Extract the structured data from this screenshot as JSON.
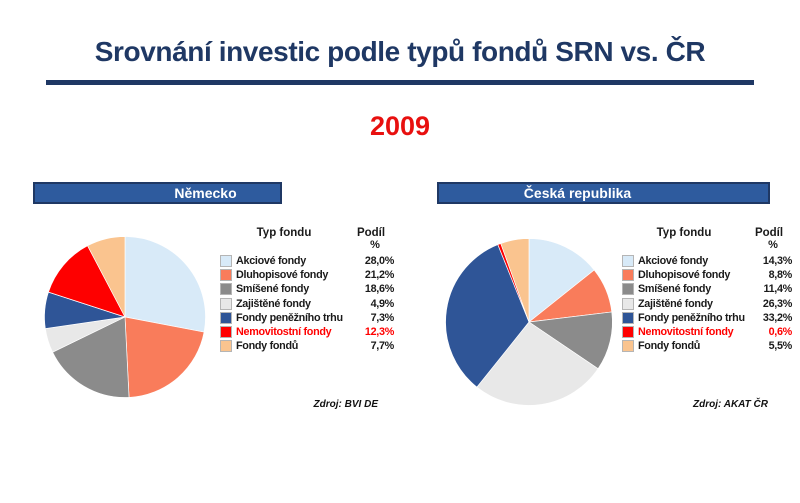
{
  "slide": {
    "title": "Srovnání investic podle typů fondů SRN vs. ČR",
    "year": "2009"
  },
  "panels": [
    {
      "header": "Německo",
      "source": "Zdroj: BVI DE"
    },
    {
      "header": "Česká republika",
      "source": "Zdroj: AKAT ČR"
    }
  ],
  "legend_headers": {
    "type": "Typ fondu",
    "share": "Podíl",
    "unit": "%"
  },
  "chart_data": [
    {
      "type": "pie",
      "title": "Německo",
      "legend_position": "right",
      "start_angle_deg": -90,
      "direction": "clockwise",
      "categories": [
        "Akciové fondy",
        "Dluhopisové fondy",
        "Smíšené fondy",
        "Zajištěné fondy",
        "Fondy peněžního trhu",
        "Nemovitostní fondy",
        "Fondy fondů"
      ],
      "values": [
        28.0,
        21.2,
        18.6,
        4.9,
        7.3,
        12.3,
        7.7
      ],
      "value_labels": [
        "28,0%",
        "21,2%",
        "18,6%",
        "4,9%",
        "7,3%",
        "12,3%",
        "7,7%"
      ],
      "colors": [
        "#D8EAF8",
        "#F97C5B",
        "#8B8B8B",
        "#E8E8E8",
        "#2F5597",
        "#FE0000",
        "#FAC48F"
      ],
      "highlight_index": 5
    },
    {
      "type": "pie",
      "title": "Česká republika",
      "legend_position": "right",
      "start_angle_deg": -90,
      "direction": "clockwise",
      "categories": [
        "Akciové fondy",
        "Dluhopisové fondy",
        "Smíšené fondy",
        "Zajištěné fondy",
        "Fondy peněžního trhu",
        "Nemovitostní fondy",
        "Fondy fondů"
      ],
      "values": [
        14.3,
        8.8,
        11.4,
        26.3,
        33.2,
        0.6,
        5.5
      ],
      "value_labels": [
        "14,3%",
        "8,8%",
        "11,4%",
        "26,3%",
        "33,2%",
        "0,6%",
        "5,5%"
      ],
      "colors": [
        "#D8EAF8",
        "#F97C5B",
        "#8B8B8B",
        "#E8E8E8",
        "#2F5597",
        "#FE0000",
        "#FAC48F"
      ],
      "highlight_index": 5
    }
  ],
  "colors": {
    "title_navy": "#1F3864",
    "bar_fill": "#2E5B9E",
    "bar_border": "#1F3864",
    "year_red": "#E8100F",
    "highlight_red": "#FF0000"
  }
}
